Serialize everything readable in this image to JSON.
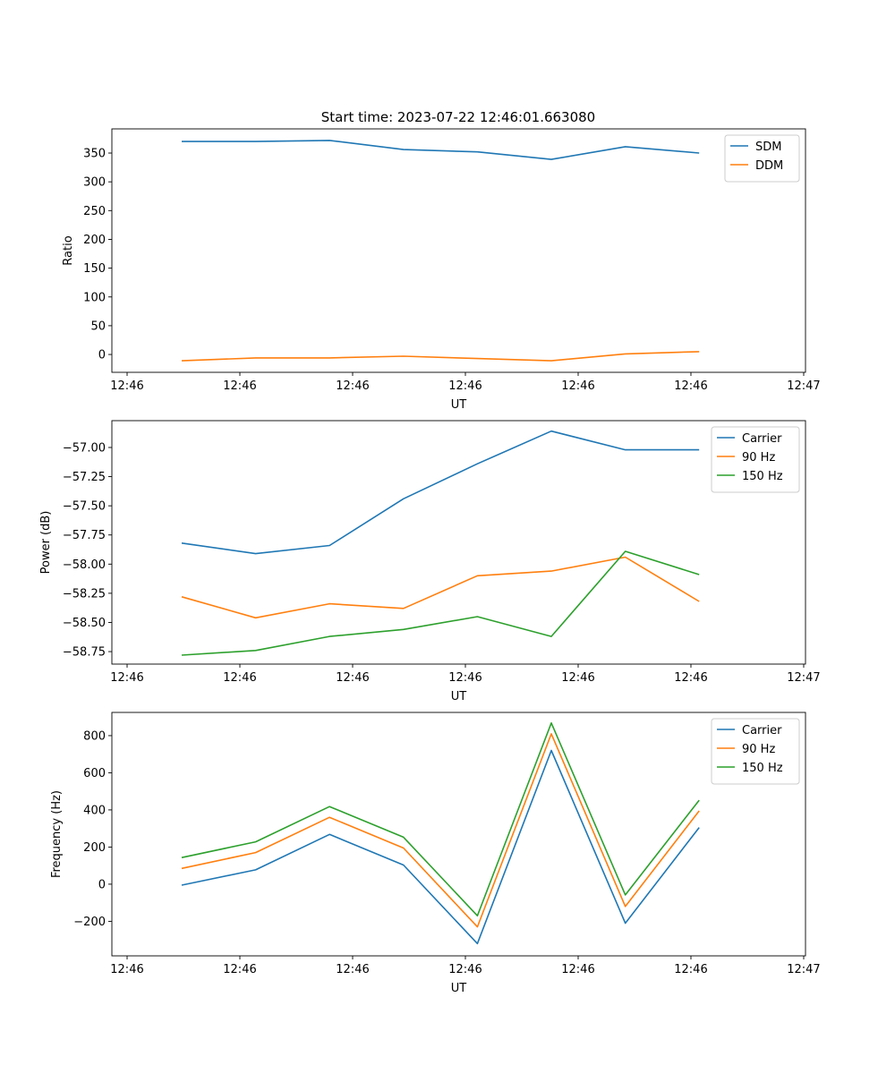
{
  "title": "Start time: 2023-07-22 12:46:01.663080",
  "colors": {
    "blue": "#1f77b4",
    "orange": "#ff7f0e",
    "green": "#2ca02c"
  },
  "chart_data": [
    {
      "type": "line",
      "title": "Start time: 2023-07-22 12:46:01.663080",
      "xlabel": "UT",
      "ylabel": "Ratio",
      "x": [
        4.84,
        11.4,
        17.95,
        24.51,
        31.06,
        37.62,
        44.18,
        50.73
      ],
      "xlim": [
        -1.35,
        60.16
      ],
      "xticks": [
        0,
        10,
        20,
        30,
        40,
        50,
        60
      ],
      "xticklabels": [
        "12:46",
        "12:46",
        "12:46",
        "12:46",
        "12:46",
        "12:46",
        "12:47"
      ],
      "ylim": [
        -31,
        392
      ],
      "yticks": [
        0,
        50,
        100,
        150,
        200,
        250,
        300,
        350
      ],
      "yticklabels": [
        "0",
        "50",
        "100",
        "150",
        "200",
        "250",
        "300",
        "350"
      ],
      "legend": "top-right",
      "grid": false,
      "series": [
        {
          "name": "SDM",
          "color": "#1f77b4",
          "values": [
            370,
            370,
            372,
            356,
            352,
            339,
            361,
            350
          ]
        },
        {
          "name": "DDM",
          "color": "#ff7f0e",
          "values": [
            -11,
            -6,
            -6,
            -3,
            -7,
            -11,
            1,
            5
          ]
        }
      ]
    },
    {
      "type": "line",
      "xlabel": "UT",
      "ylabel": "Power (dB)",
      "x": [
        4.84,
        11.4,
        17.95,
        24.51,
        31.06,
        37.62,
        44.18,
        50.73
      ],
      "xlim": [
        -1.35,
        60.16
      ],
      "xticks": [
        0,
        10,
        20,
        30,
        40,
        50,
        60
      ],
      "xticklabels": [
        "12:46",
        "12:46",
        "12:46",
        "12:46",
        "12:46",
        "12:46",
        "12:47"
      ],
      "ylim": [
        -58.857,
        -56.77
      ],
      "yticks": [
        -58.75,
        -58.5,
        -58.25,
        -58.0,
        -57.75,
        -57.5,
        -57.25,
        -57.0
      ],
      "yticklabels": [
        "−58.75",
        "−58.50",
        "−58.25",
        "−58.00",
        "−57.75",
        "−57.50",
        "−57.25",
        "−57.00"
      ],
      "legend": "top-right",
      "grid": false,
      "series": [
        {
          "name": "Carrier",
          "color": "#1f77b4",
          "values": [
            -57.82,
            -57.91,
            -57.84,
            -57.44,
            -57.14,
            -56.86,
            -57.02,
            -57.02
          ]
        },
        {
          "name": "90 Hz",
          "color": "#ff7f0e",
          "values": [
            -58.28,
            -58.46,
            -58.34,
            -58.38,
            -58.1,
            -58.06,
            -57.94,
            -58.32
          ]
        },
        {
          "name": "150 Hz",
          "color": "#2ca02c",
          "values": [
            -58.78,
            -58.74,
            -58.62,
            -58.56,
            -58.45,
            -58.62,
            -57.89,
            -58.09
          ]
        }
      ]
    },
    {
      "type": "line",
      "xlabel": "UT",
      "ylabel": "Frequency (Hz)",
      "x": [
        4.84,
        11.4,
        17.95,
        24.51,
        31.06,
        37.62,
        44.18,
        50.73
      ],
      "xlim": [
        -1.35,
        60.16
      ],
      "xticks": [
        0,
        10,
        20,
        30,
        40,
        50,
        60
      ],
      "xticklabels": [
        "12:46",
        "12:46",
        "12:46",
        "12:46",
        "12:46",
        "12:46",
        "12:47"
      ],
      "ylim": [
        -386,
        925
      ],
      "yticks": [
        -200,
        0,
        200,
        400,
        600,
        800
      ],
      "yticklabels": [
        "−200",
        "0",
        "200",
        "400",
        "600",
        "800"
      ],
      "legend": "top-right",
      "grid": false,
      "series": [
        {
          "name": "Carrier",
          "color": "#1f77b4",
          "values": [
            -5,
            77,
            268,
            103,
            -320,
            720,
            -210,
            305
          ]
        },
        {
          "name": "90 Hz",
          "color": "#ff7f0e",
          "values": [
            85,
            170,
            360,
            195,
            -230,
            810,
            -120,
            395
          ]
        },
        {
          "name": "150 Hz",
          "color": "#2ca02c",
          "values": [
            143,
            228,
            418,
            253,
            -170,
            868,
            -58,
            452
          ]
        }
      ]
    }
  ]
}
